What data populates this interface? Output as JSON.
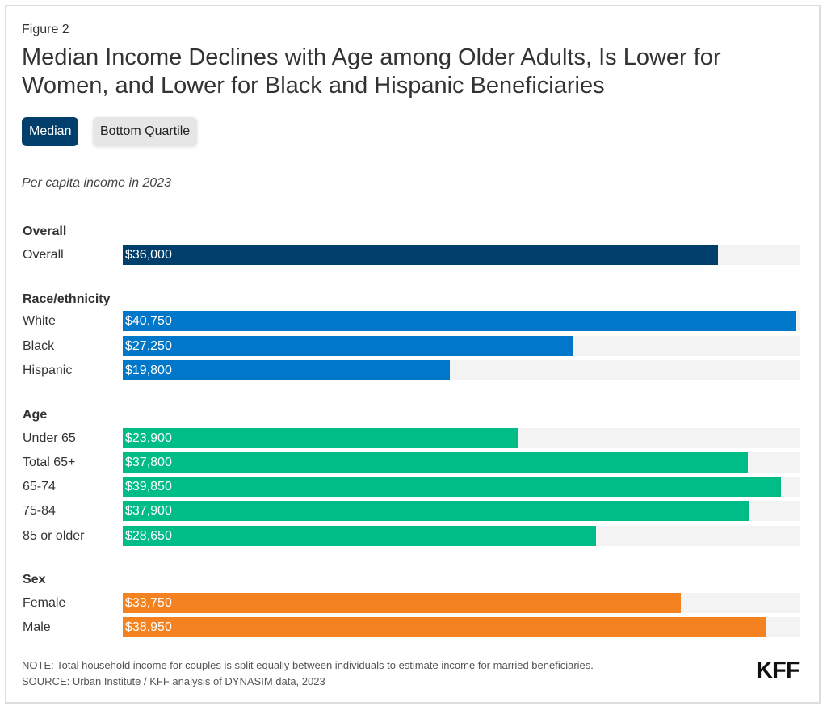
{
  "figure_label": "Figure 2",
  "title": "Median Income Declines with Age among Older Adults, Is Lower for Women, and Lower for Black and Hispanic Beneficiaries",
  "toggles": [
    {
      "label": "Median",
      "active": true
    },
    {
      "label": "Bottom Quartile",
      "active": false
    }
  ],
  "subtitle": "Per capita income in 2023",
  "colors": {
    "overall": "#003e6b",
    "race": "#0077c8",
    "age": "#00bd88",
    "sex": "#f58220",
    "track": "#f3f3f3"
  },
  "chart_data": {
    "type": "bar",
    "orientation": "horizontal",
    "title": "Median Income Declines with Age among Older Adults, Is Lower for Women, and Lower for Black and Hispanic Beneficiaries",
    "subtitle": "Per capita income in 2023",
    "xlim": [
      0,
      41000
    ],
    "groups": [
      {
        "name": "Overall",
        "color_key": "overall",
        "rows": [
          {
            "label": "Overall",
            "value": 36000,
            "display": "$36,000"
          }
        ]
      },
      {
        "name": "Race/ethnicity",
        "color_key": "race",
        "rows": [
          {
            "label": "White",
            "value": 40750,
            "display": "$40,750"
          },
          {
            "label": "Black",
            "value": 27250,
            "display": "$27,250"
          },
          {
            "label": "Hispanic",
            "value": 19800,
            "display": "$19,800"
          }
        ]
      },
      {
        "name": "Age",
        "color_key": "age",
        "rows": [
          {
            "label": "Under 65",
            "value": 23900,
            "display": "$23,900"
          },
          {
            "label": "Total 65+",
            "value": 37800,
            "display": "$37,800"
          },
          {
            "label": "65-74",
            "value": 39850,
            "display": "$39,850"
          },
          {
            "label": "75-84",
            "value": 37900,
            "display": "$37,900"
          },
          {
            "label": "85 or older",
            "value": 28650,
            "display": "$28,650"
          }
        ]
      },
      {
        "name": "Sex",
        "color_key": "sex",
        "rows": [
          {
            "label": "Female",
            "value": 33750,
            "display": "$33,750"
          },
          {
            "label": "Male",
            "value": 38950,
            "display": "$38,950"
          }
        ]
      }
    ]
  },
  "footer": {
    "note": "NOTE: Total household income for couples is split equally between individuals to estimate income for married beneficiaries.",
    "source": "SOURCE: Urban Institute / KFF analysis of DYNASIM data, 2023",
    "logo": "KFF"
  }
}
